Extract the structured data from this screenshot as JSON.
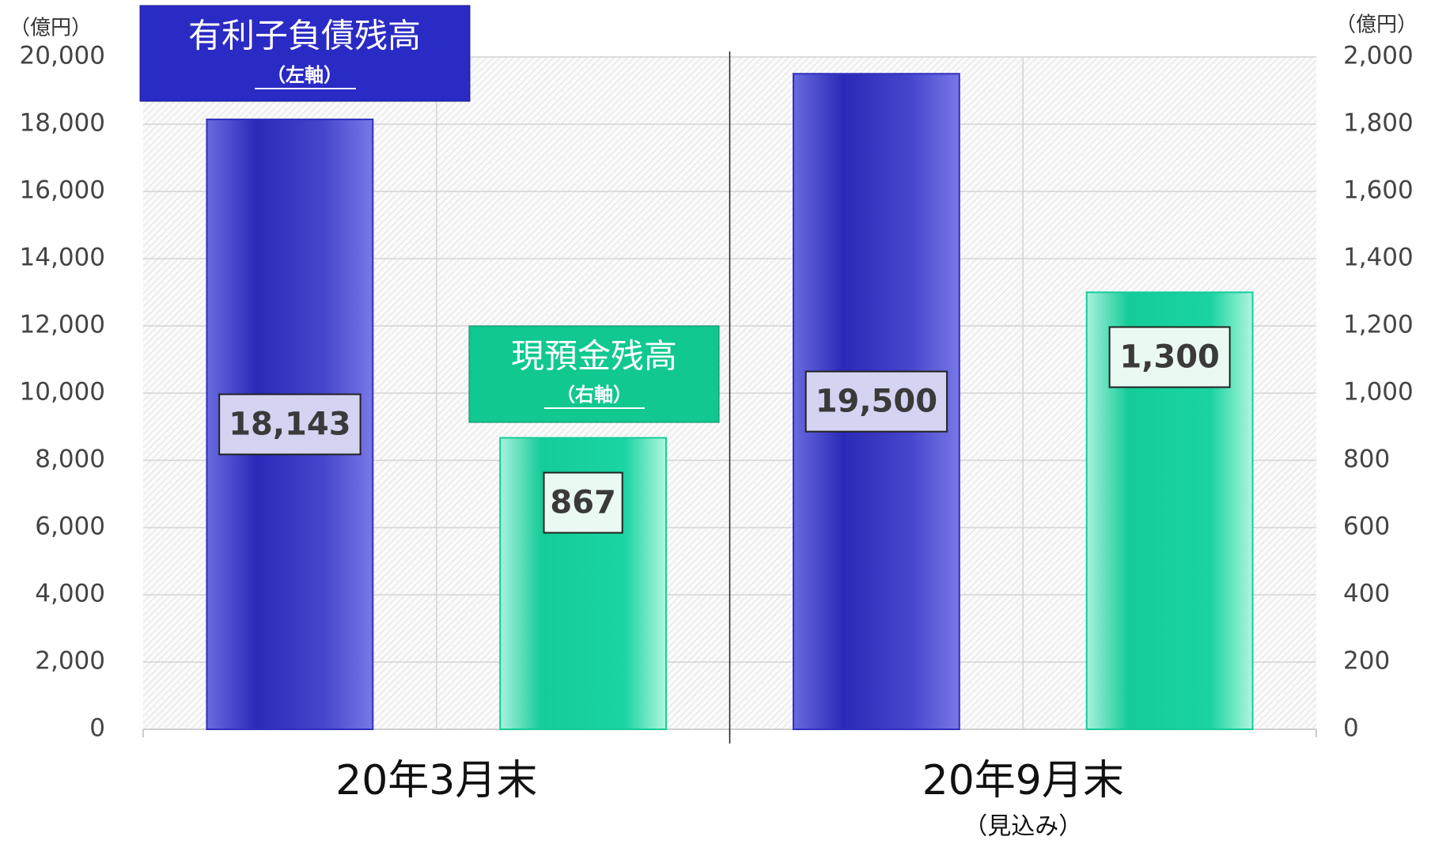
{
  "chart_data": {
    "type": "bar",
    "categories": [
      "20年3月末",
      "20年9月末"
    ],
    "category_notes": [
      null,
      "（見込み）"
    ],
    "ylabel": "（億円）",
    "y2label": "（億円）",
    "series": [
      {
        "name": "有利子負債残高",
        "note": "（左軸）",
        "color": "#2f2fc0",
        "axis": "y",
        "values": [
          18143,
          19500
        ],
        "value_labels": [
          "18,143",
          "19,500"
        ]
      },
      {
        "name": "現預金残高",
        "note": "（右軸）",
        "color": "#14cc98",
        "axis": "y2",
        "values": [
          867,
          1300
        ],
        "value_labels": [
          "867",
          "1,300"
        ]
      }
    ],
    "ylim": [
      0,
      20000
    ],
    "yticks": [
      0,
      {
        "value": 2000,
        "label": "2,000"
      },
      {
        "value": 4000,
        "label": "4,000"
      },
      {
        "value": 6000,
        "label": "6,000"
      },
      {
        "value": 8000,
        "label": "8,000"
      },
      {
        "value": 10000,
        "label": "10,000"
      },
      {
        "value": 12000,
        "label": "12,000"
      },
      {
        "value": 14000,
        "label": "14,000"
      },
      {
        "value": 16000,
        "label": "16,000"
      },
      {
        "value": 18000,
        "label": "18,000"
      },
      {
        "value": 20000,
        "label": "20,000"
      }
    ],
    "y2lim": [
      0,
      2000
    ],
    "y2ticks": [
      0,
      200,
      400,
      600,
      800,
      {
        "value": 1000,
        "label": "1,000"
      },
      {
        "value": 1200,
        "label": "1,200"
      },
      {
        "value": 1400,
        "label": "1,400"
      },
      {
        "value": 1600,
        "label": "1,600"
      },
      {
        "value": 1800,
        "label": "1,800"
      },
      {
        "value": 2000,
        "label": "2,000"
      }
    ],
    "grid": true
  }
}
